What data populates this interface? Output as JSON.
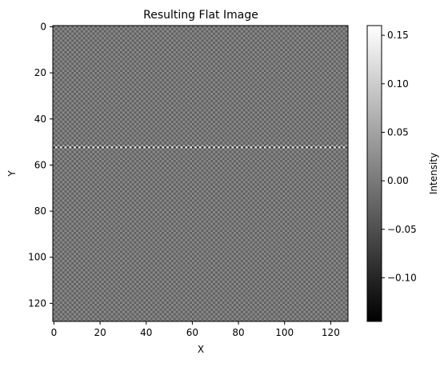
{
  "chart_data": {
    "type": "heatmap",
    "title": "Resulting Flat Image",
    "xlabel": "X",
    "ylabel": "Y",
    "xlim": [
      0,
      127
    ],
    "ylim": [
      127,
      0
    ],
    "x_ticks": [
      0,
      20,
      40,
      60,
      80,
      100,
      120
    ],
    "y_ticks": [
      0,
      20,
      40,
      60,
      80,
      100,
      120
    ],
    "image_size": [
      128,
      128
    ],
    "pattern": "checkerboard",
    "bright_row": 52,
    "colormap": "gray",
    "colorbar": {
      "label": "Intensity",
      "min": -0.145,
      "max": 0.16,
      "ticks": [
        0.15,
        0.1,
        0.05,
        0.0,
        -0.05,
        -0.1
      ],
      "tick_labels": [
        "0.15",
        "0.10",
        "0.05",
        "0.00",
        "−0.05",
        "−0.10"
      ]
    },
    "grid": false
  }
}
